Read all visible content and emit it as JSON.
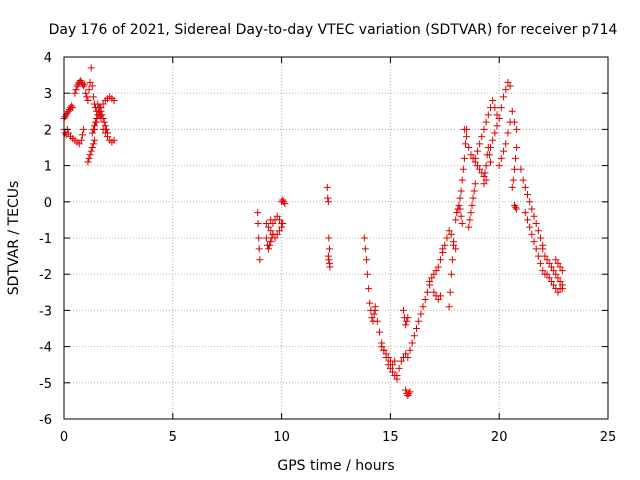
{
  "chart_data": {
    "type": "scatter",
    "title": "Day 176 of 2021, Sidereal Day-to-day VTEC variation (SDTVAR) for receiver p714",
    "xlabel": "GPS time / hours",
    "ylabel": "SDTVAR / TECUs",
    "xlim": [
      0,
      25
    ],
    "ylim": [
      -6,
      4
    ],
    "xticks": [
      0,
      5,
      10,
      15,
      20,
      25
    ],
    "yticks": [
      -6,
      -5,
      -4,
      -3,
      -2,
      -1,
      0,
      1,
      2,
      3,
      4
    ],
    "xtick_labels": [
      "0",
      "5",
      "10",
      "15",
      "20",
      "25"
    ],
    "ytick_labels": [
      "-6",
      "-5",
      "-4",
      "-3",
      "-2",
      "-1",
      "0",
      "1",
      "2",
      "3",
      "4"
    ],
    "grid": true,
    "marker": "+",
    "color": "#e00000",
    "series": [
      {
        "name": "SDTVAR p714",
        "segments": [
          {
            "x": [
              0.0,
              0.05,
              0.1,
              0.15,
              0.2,
              0.25,
              0.3,
              0.35,
              0.4
            ],
            "y": [
              2.3,
              2.35,
              2.4,
              2.45,
              2.5,
              2.55,
              2.6,
              2.65,
              2.6
            ]
          },
          {
            "x": [
              0.0,
              0.05,
              0.1,
              0.15,
              0.2,
              0.3,
              0.4,
              0.5,
              0.6,
              0.7,
              0.8,
              0.85,
              0.9
            ],
            "y": [
              2.0,
              1.9,
              1.85,
              2.0,
              1.9,
              1.8,
              1.75,
              1.7,
              1.65,
              1.6,
              1.7,
              1.85,
              2.0
            ]
          },
          {
            "x": [
              0.5,
              0.55,
              0.6,
              0.65,
              0.7,
              0.75,
              0.8,
              0.85,
              0.9,
              0.95
            ],
            "y": [
              3.0,
              3.1,
              3.2,
              3.25,
              3.3,
              3.35,
              3.3,
              3.25,
              3.2,
              3.25
            ]
          },
          {
            "x": [
              1.0,
              1.05,
              1.1,
              1.15,
              1.2,
              1.25,
              1.3,
              1.35,
              1.4,
              1.45,
              1.5,
              1.55,
              1.6,
              1.65,
              1.7
            ],
            "y": [
              3.0,
              2.9,
              2.8,
              3.1,
              3.3,
              3.7,
              3.2,
              2.9,
              2.7,
              2.6,
              2.5,
              2.7,
              2.6,
              2.4,
              2.3
            ]
          },
          {
            "x": [
              1.1,
              1.15,
              1.2,
              1.25,
              1.3,
              1.35,
              1.4
            ],
            "y": [
              1.1,
              1.2,
              1.3,
              1.4,
              1.5,
              1.6,
              1.7
            ]
          },
          {
            "x": [
              1.3,
              1.35,
              1.4,
              1.45,
              1.5,
              1.55,
              1.6,
              1.65,
              1.7,
              1.75,
              1.8,
              1.85,
              1.9,
              1.95,
              2.0
            ],
            "y": [
              1.9,
              2.0,
              2.1,
              2.2,
              2.3,
              2.4,
              2.5,
              2.6,
              2.5,
              2.4,
              2.3,
              2.2,
              2.1,
              2.0,
              1.9
            ]
          },
          {
            "x": [
              1.4,
              1.5,
              1.6,
              1.7,
              1.8,
              1.9,
              2.0,
              2.1,
              2.2,
              2.3
            ],
            "y": [
              2.0,
              2.2,
              2.4,
              2.6,
              2.7,
              2.8,
              2.85,
              2.9,
              2.85,
              2.8
            ]
          },
          {
            "x": [
              1.8,
              1.9,
              2.0,
              2.1,
              2.2,
              2.3
            ],
            "y": [
              2.0,
              1.9,
              1.8,
              1.7,
              1.65,
              1.7
            ]
          },
          {
            "x": [
              8.9,
              8.92,
              8.95,
              8.97,
              9.0
            ],
            "y": [
              -0.3,
              -0.6,
              -1.0,
              -1.3,
              -1.6
            ]
          },
          {
            "x": [
              9.3,
              9.4,
              9.5,
              9.6,
              9.7,
              9.8,
              9.9,
              10.0,
              10.05
            ],
            "y": [
              -0.6,
              -0.7,
              -0.8,
              -0.9,
              -1.0,
              -0.9,
              -0.8,
              -0.7,
              -0.6
            ]
          },
          {
            "x": [
              9.3,
              9.35,
              9.4,
              9.45,
              9.5,
              9.55,
              9.6
            ],
            "y": [
              -1.0,
              -1.2,
              -1.3,
              -1.2,
              -1.1,
              -1.0,
              -0.9
            ]
          },
          {
            "x": [
              9.5,
              9.6,
              9.7,
              9.8,
              9.9,
              10.0
            ],
            "y": [
              -0.5,
              -0.6,
              -0.5,
              -0.4,
              -0.5,
              -0.6
            ]
          },
          {
            "x": [
              10.0,
              10.05,
              10.1,
              10.15
            ],
            "y": [
              0.0,
              0.05,
              0.0,
              -0.05
            ]
          },
          {
            "x": [
              12.1,
              12.12,
              12.15,
              12.17,
              12.2
            ],
            "y": [
              0.4,
              0.1,
              0.0,
              -1.0,
              -1.3
            ]
          },
          {
            "x": [
              12.15,
              12.17,
              12.2,
              12.22
            ],
            "y": [
              -1.5,
              -1.6,
              -1.7,
              -1.8
            ]
          },
          {
            "x": [
              13.8,
              13.85,
              13.9,
              13.95,
              14.0,
              14.05,
              14.1,
              14.15,
              14.2,
              14.25,
              14.3
            ],
            "y": [
              -1.0,
              -1.3,
              -1.6,
              -2.0,
              -2.4,
              -2.8,
              -3.0,
              -3.2,
              -3.3,
              -3.1,
              -2.9
            ]
          },
          {
            "x": [
              14.3,
              14.4,
              14.5,
              14.6,
              14.7,
              14.8,
              14.9,
              15.0,
              15.1,
              15.2,
              15.3
            ],
            "y": [
              -3.0,
              -3.3,
              -3.6,
              -3.9,
              -4.1,
              -4.3,
              -4.5,
              -4.6,
              -4.7,
              -4.8,
              -4.9
            ]
          },
          {
            "x": [
              14.6,
              14.7,
              14.8,
              14.9,
              15.0,
              15.1,
              15.2
            ],
            "y": [
              -4.0,
              -4.1,
              -4.2,
              -4.3,
              -4.4,
              -4.5,
              -4.4
            ]
          },
          {
            "x": [
              15.3,
              15.4,
              15.5,
              15.6,
              15.7
            ],
            "y": [
              -4.8,
              -4.6,
              -4.4,
              -4.3,
              -4.2
            ]
          },
          {
            "x": [
              15.6,
              15.65,
              15.7,
              15.75,
              15.8
            ],
            "y": [
              -3.0,
              -3.2,
              -3.4,
              -3.3,
              -3.2
            ]
          },
          {
            "x": [
              15.7,
              15.75,
              15.8,
              15.85,
              15.9
            ],
            "y": [
              -5.2,
              -5.3,
              -5.35,
              -5.3,
              -5.25
            ]
          },
          {
            "x": [
              15.8,
              15.9,
              16.0,
              16.1,
              16.2,
              16.3,
              16.4,
              16.5,
              16.6,
              16.7,
              16.8
            ],
            "y": [
              -4.3,
              -4.1,
              -3.9,
              -3.7,
              -3.5,
              -3.3,
              -3.1,
              -2.9,
              -2.7,
              -2.5,
              -2.3
            ]
          },
          {
            "x": [
              16.8,
              16.9,
              17.0,
              17.1,
              17.2,
              17.3,
              17.4
            ],
            "y": [
              -2.2,
              -2.1,
              -2.0,
              -1.9,
              -1.8,
              -1.6,
              -1.4
            ]
          },
          {
            "x": [
              17.0,
              17.1,
              17.2,
              17.3
            ],
            "y": [
              -2.5,
              -2.6,
              -2.7,
              -2.6
            ]
          },
          {
            "x": [
              17.4,
              17.5,
              17.6,
              17.7,
              17.8,
              17.9,
              18.0
            ],
            "y": [
              -1.3,
              -1.2,
              -1.0,
              -0.8,
              -0.9,
              -1.1,
              -1.3
            ]
          },
          {
            "x": [
              17.7,
              17.75,
              17.8,
              17.85,
              17.9
            ],
            "y": [
              -2.9,
              -2.5,
              -2.0,
              -1.6,
              -1.2
            ]
          },
          {
            "x": [
              18.0,
              18.05,
              18.1,
              18.15,
              18.2,
              18.25,
              18.3
            ],
            "y": [
              -0.5,
              -0.3,
              -0.2,
              -0.1,
              -0.2,
              -0.4,
              -0.6
            ]
          },
          {
            "x": [
              18.2,
              18.25,
              18.3,
              18.35,
              18.4,
              18.45,
              18.5
            ],
            "y": [
              0.1,
              0.3,
              0.6,
              0.9,
              1.2,
              1.6,
              2.0
            ]
          },
          {
            "x": [
              18.4,
              18.5,
              18.6,
              18.7,
              18.8,
              18.9,
              19.0,
              19.1,
              19.2,
              19.3,
              19.4
            ],
            "y": [
              2.0,
              1.8,
              1.5,
              1.3,
              1.2,
              1.1,
              1.0,
              0.9,
              0.8,
              0.7,
              0.6
            ]
          },
          {
            "x": [
              18.6,
              18.65,
              18.7,
              18.75,
              18.8,
              18.85,
              18.9
            ],
            "y": [
              -0.7,
              -0.5,
              -0.3,
              -0.1,
              0.1,
              0.3,
              0.5
            ]
          },
          {
            "x": [
              18.9,
              19.0,
              19.1,
              19.2,
              19.3,
              19.4,
              19.5,
              19.6,
              19.7,
              19.8,
              19.9
            ],
            "y": [
              1.2,
              1.4,
              1.6,
              1.8,
              2.0,
              2.2,
              2.4,
              2.6,
              2.8,
              2.6,
              2.4
            ]
          },
          {
            "x": [
              19.3,
              19.35,
              19.4,
              19.45,
              19.5,
              19.55,
              19.6
            ],
            "y": [
              0.5,
              0.8,
              1.0,
              1.3,
              1.5,
              1.3,
              1.1
            ]
          },
          {
            "x": [
              19.6,
              19.7,
              19.8,
              19.9,
              20.0,
              20.1,
              20.2,
              20.3,
              20.4,
              20.5
            ],
            "y": [
              1.5,
              1.7,
              1.9,
              2.1,
              2.3,
              2.6,
              2.9,
              3.1,
              3.3,
              3.2
            ]
          },
          {
            "x": [
              20.0,
              20.1,
              20.2,
              20.3,
              20.4,
              20.5,
              20.6,
              20.7,
              20.8
            ],
            "y": [
              1.0,
              1.2,
              1.4,
              1.6,
              1.9,
              2.2,
              2.5,
              2.2,
              2.0
            ]
          },
          {
            "x": [
              20.6,
              20.65,
              20.7,
              20.75,
              20.8
            ],
            "y": [
              0.4,
              0.6,
              0.9,
              1.2,
              1.5
            ]
          },
          {
            "x": [
              20.7,
              20.75,
              20.8
            ],
            "y": [
              -0.1,
              -0.15,
              -0.2
            ]
          },
          {
            "x": [
              21.0,
              21.1,
              21.2,
              21.3,
              21.4,
              21.5,
              21.6,
              21.7,
              21.8,
              21.9,
              22.0
            ],
            "y": [
              0.9,
              0.6,
              0.4,
              0.2,
              0.0,
              -0.2,
              -0.4,
              -0.6,
              -0.8,
              -1.0,
              -1.2
            ]
          },
          {
            "x": [
              21.2,
              21.3,
              21.4,
              21.5,
              21.6,
              21.7,
              21.8,
              21.9,
              22.0,
              22.1
            ],
            "y": [
              -0.3,
              -0.5,
              -0.7,
              -0.9,
              -1.1,
              -1.3,
              -1.5,
              -1.7,
              -1.9,
              -2.0
            ]
          },
          {
            "x": [
              22.0,
              22.1,
              22.2,
              22.3,
              22.4,
              22.5,
              22.6,
              22.7,
              22.8,
              22.9
            ],
            "y": [
              -1.3,
              -1.5,
              -1.6,
              -1.7,
              -1.8,
              -1.9,
              -2.0,
              -2.1,
              -2.2,
              -2.4
            ]
          },
          {
            "x": [
              22.2,
              22.3,
              22.4,
              22.5,
              22.6,
              22.7,
              22.8,
              22.9
            ],
            "y": [
              -2.0,
              -2.1,
              -2.2,
              -2.3,
              -2.4,
              -2.5,
              -2.4,
              -2.3
            ]
          },
          {
            "x": [
              22.6,
              22.7,
              22.8,
              22.9
            ],
            "y": [
              -1.6,
              -1.7,
              -1.8,
              -1.9
            ]
          }
        ]
      }
    ]
  }
}
